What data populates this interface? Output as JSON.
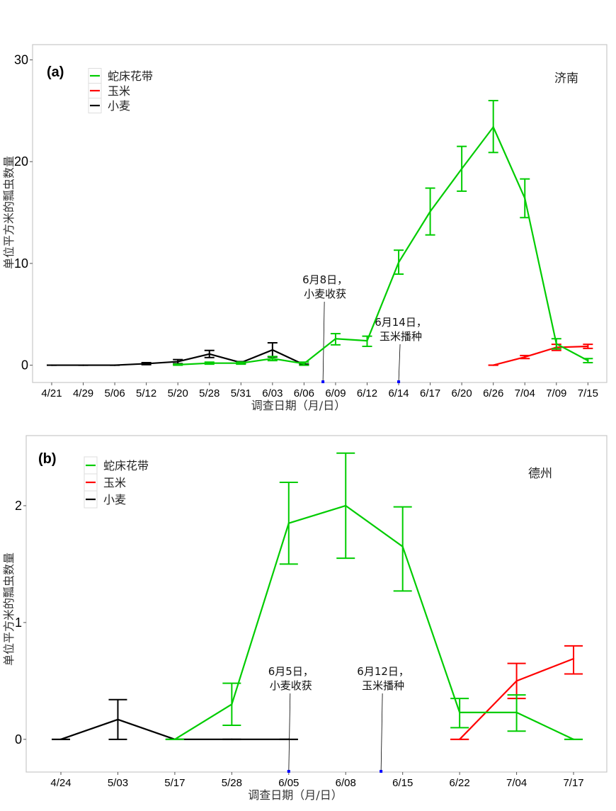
{
  "chart_data": [
    {
      "type": "line",
      "panel_label": "(a)",
      "location": "济南",
      "xlabel": "调查日期（月/日）",
      "ylabel": "单位平方米的瓢虫数量",
      "categories": [
        "4/21",
        "4/29",
        "5/06",
        "5/12",
        "5/20",
        "5/28",
        "5/31",
        "6/03",
        "6/06",
        "6/09",
        "6/12",
        "6/14",
        "6/17",
        "6/20",
        "6/26",
        "7/04",
        "7/09",
        "7/15"
      ],
      "ylim": [
        -1.7,
        31.5
      ],
      "yticks": [
        0,
        10,
        20,
        30
      ],
      "grid": false,
      "legend_position": "top-left",
      "series": [
        {
          "name": "蛇床花带",
          "color": "#00cc00",
          "points": [
            {
              "x": "5/20",
              "y": 0.05,
              "lo": 0.0,
              "hi": 0.1
            },
            {
              "x": "5/28",
              "y": 0.2,
              "lo": 0.1,
              "hi": 0.3
            },
            {
              "x": "5/31",
              "y": 0.2,
              "lo": 0.1,
              "hi": 0.3
            },
            {
              "x": "6/03",
              "y": 0.65,
              "lo": 0.45,
              "hi": 0.85
            },
            {
              "x": "6/06",
              "y": 0.15,
              "lo": 0.0,
              "hi": 0.3
            },
            {
              "x": "6/09",
              "y": 2.6,
              "lo": 2.0,
              "hi": 3.1
            },
            {
              "x": "6/12",
              "y": 2.4,
              "lo": 1.85,
              "hi": 2.85
            },
            {
              "x": "6/14",
              "y": 10.1,
              "lo": 8.95,
              "hi": 11.3
            },
            {
              "x": "6/17",
              "y": 15.1,
              "lo": 12.8,
              "hi": 17.4
            },
            {
              "x": "6/20",
              "y": 19.3,
              "lo": 17.1,
              "hi": 21.5
            },
            {
              "x": "6/26",
              "y": 23.4,
              "lo": 20.9,
              "hi": 26.0
            },
            {
              "x": "7/04",
              "y": 16.4,
              "lo": 14.5,
              "hi": 18.3
            },
            {
              "x": "7/09",
              "y": 2.1,
              "lo": 1.6,
              "hi": 2.6
            },
            {
              "x": "7/15",
              "y": 0.45,
              "lo": 0.25,
              "hi": 0.65
            }
          ]
        },
        {
          "name": "玉米",
          "color": "#ff0000",
          "points": [
            {
              "x": "6/26",
              "y": 0.0,
              "lo": 0.0,
              "hi": 0.0
            },
            {
              "x": "7/04",
              "y": 0.8,
              "lo": 0.65,
              "hi": 0.95
            },
            {
              "x": "7/09",
              "y": 1.75,
              "lo": 1.45,
              "hi": 2.05
            },
            {
              "x": "7/15",
              "y": 1.85,
              "lo": 1.65,
              "hi": 2.05
            }
          ]
        },
        {
          "name": "小麦",
          "color": "#000000",
          "points": [
            {
              "x": "4/21",
              "y": 0.0,
              "lo": 0.0,
              "hi": 0.0
            },
            {
              "x": "4/29",
              "y": 0.0,
              "lo": 0.0,
              "hi": 0.0
            },
            {
              "x": "5/06",
              "y": 0.0,
              "lo": 0.0,
              "hi": 0.0
            },
            {
              "x": "5/12",
              "y": 0.15,
              "lo": 0.05,
              "hi": 0.25
            },
            {
              "x": "5/20",
              "y": 0.35,
              "lo": 0.15,
              "hi": 0.55
            },
            {
              "x": "5/28",
              "y": 1.1,
              "lo": 0.75,
              "hi": 1.45
            },
            {
              "x": "5/31",
              "y": 0.25,
              "lo": 0.15,
              "hi": 0.35
            },
            {
              "x": "6/03",
              "y": 1.5,
              "lo": 0.8,
              "hi": 2.2
            },
            {
              "x": "6/06",
              "y": 0.05,
              "lo": 0.0,
              "hi": 0.1
            }
          ]
        }
      ],
      "annotations": [
        {
          "line1": "6月8日，",
          "line2": "小麦收获",
          "x_between": [
            "6/06",
            "6/09"
          ],
          "frac": 0.6
        },
        {
          "line1": "6月14日，",
          "line2": "玉米播种",
          "x_between": [
            "6/14",
            "6/14"
          ],
          "frac": 0
        }
      ]
    },
    {
      "type": "line",
      "panel_label": "(b)",
      "location": "德州",
      "xlabel": "调查日期（月/日）",
      "ylabel": "单位平方米的瓢虫数量",
      "categories": [
        "4/24",
        "5/03",
        "5/17",
        "5/28",
        "6/05",
        "6/08",
        "6/15",
        "6/22",
        "7/04",
        "7/17"
      ],
      "ylim": [
        -0.28,
        2.6
      ],
      "yticks": [
        0,
        1,
        2
      ],
      "grid": false,
      "legend_position": "top-left",
      "series": [
        {
          "name": "蛇床花带",
          "color": "#00cc00",
          "points": [
            {
              "x": "5/17",
              "y": 0.0,
              "lo": 0.0,
              "hi": 0.0
            },
            {
              "x": "5/28",
              "y": 0.3,
              "lo": 0.12,
              "hi": 0.48
            },
            {
              "x": "6/05",
              "y": 1.85,
              "lo": 1.5,
              "hi": 2.2
            },
            {
              "x": "6/08",
              "y": 2.0,
              "lo": 1.55,
              "hi": 2.45
            },
            {
              "x": "6/15",
              "y": 1.65,
              "lo": 1.27,
              "hi": 1.99
            },
            {
              "x": "6/22",
              "y": 0.23,
              "lo": 0.1,
              "hi": 0.35
            },
            {
              "x": "7/04",
              "y": 0.23,
              "lo": 0.07,
              "hi": 0.38
            },
            {
              "x": "7/17",
              "y": 0.0,
              "lo": 0.0,
              "hi": 0.0
            }
          ]
        },
        {
          "name": "玉米",
          "color": "#ff0000",
          "points": [
            {
              "x": "6/22",
              "y": 0.0,
              "lo": 0.0,
              "hi": 0.0
            },
            {
              "x": "7/04",
              "y": 0.5,
              "lo": 0.35,
              "hi": 0.65
            },
            {
              "x": "7/17",
              "y": 0.69,
              "lo": 0.56,
              "hi": 0.8
            }
          ]
        },
        {
          "name": "小麦",
          "color": "#000000",
          "points": [
            {
              "x": "4/24",
              "y": 0.0,
              "lo": 0.0,
              "hi": 0.0
            },
            {
              "x": "5/03",
              "y": 0.17,
              "lo": 0.0,
              "hi": 0.34
            },
            {
              "x": "5/17",
              "y": 0.0,
              "lo": 0.0,
              "hi": 0.0
            },
            {
              "x": "5/28",
              "y": 0.0,
              "lo": 0.0,
              "hi": 0.0
            },
            {
              "x": "6/05",
              "y": 0.0,
              "lo": 0.0,
              "hi": 0.0
            }
          ]
        }
      ],
      "annotations": [
        {
          "line1": "6月5日，",
          "line2": "小麦收获",
          "x_between": [
            "6/05",
            "6/05"
          ],
          "frac": 0
        },
        {
          "line1": "6月12日，",
          "line2": "玉米播种",
          "x_between": [
            "6/08",
            "6/15"
          ],
          "frac": 0.62
        }
      ]
    }
  ]
}
